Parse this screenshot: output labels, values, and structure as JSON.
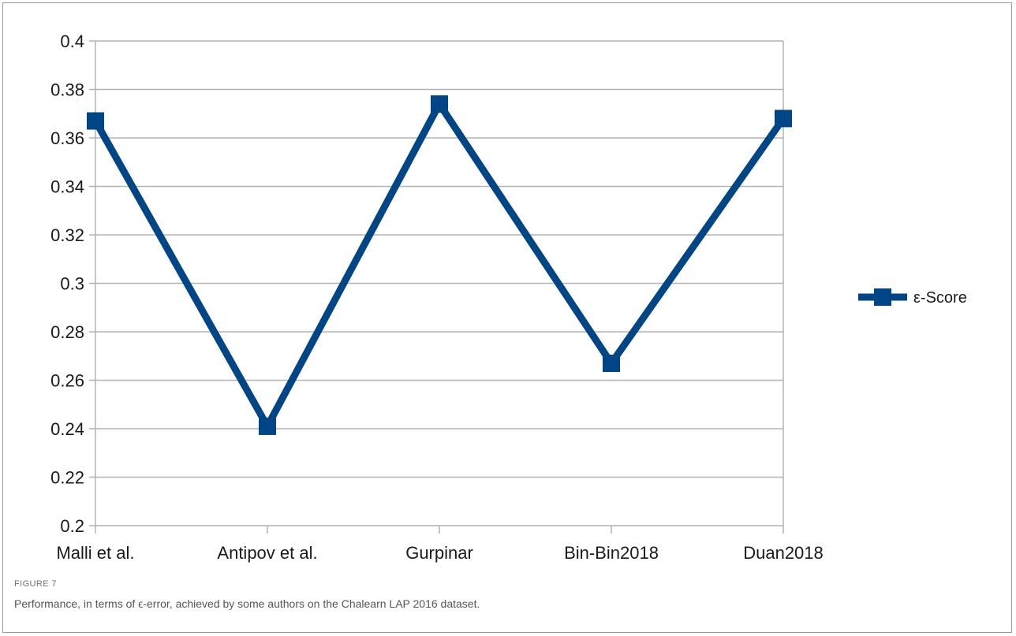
{
  "chart_data": {
    "type": "line",
    "categories": [
      "Malli et al.",
      "Antipov et al.",
      "Gurpinar",
      "Bin-Bin2018",
      "Duan2018"
    ],
    "series": [
      {
        "name": "ε-Score",
        "values": [
          0.367,
          0.241,
          0.374,
          0.267,
          0.368
        ],
        "color": "#004586"
      }
    ],
    "ylim": [
      0.2,
      0.4
    ],
    "yticks": [
      "0.2",
      "0.22",
      "0.24",
      "0.26",
      "0.28",
      "0.3",
      "0.32",
      "0.34",
      "0.36",
      "0.38",
      "0.4"
    ],
    "grid": true,
    "legend": "right",
    "gridColor": "#b3b3b3"
  },
  "figure": {
    "label": "FIGURE 7",
    "caption": "Performance, in terms of ϵ-error, achieved by some authors on the Chalearn LAP 2016 dataset."
  }
}
